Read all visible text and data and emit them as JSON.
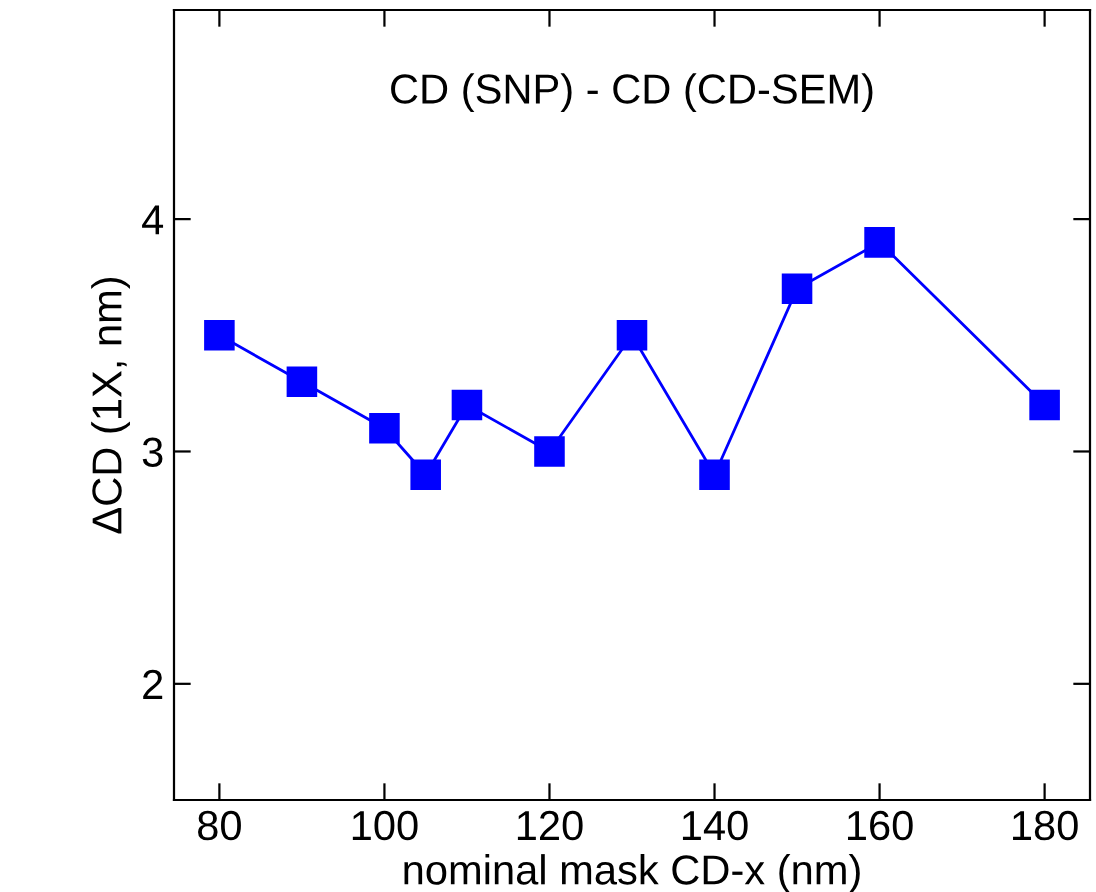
{
  "chart_data": {
    "type": "line",
    "xlabel": "nominal mask CD-x (nm)",
    "ylabel": "ΔCD (1X, nm)",
    "annotations": [
      "CD (SNP) - CD (CD-SEM)"
    ],
    "x": [
      80,
      90,
      100,
      105,
      110,
      120,
      130,
      140,
      150,
      160,
      180
    ],
    "series": [
      {
        "color": "#0000ff",
        "values": [
          3.5,
          3.3,
          3.1,
          2.9,
          3.2,
          3.0,
          3.5,
          2.9,
          3.7,
          3.9,
          3.2
        ]
      }
    ],
    "marker": "square",
    "line_style": "solid",
    "xlim": [
      74.5,
      185.5
    ],
    "xticks": [
      80,
      100,
      120,
      140,
      160,
      180
    ],
    "ylim": [
      1.5,
      4.9
    ],
    "yticks": [
      2,
      3,
      4
    ],
    "grid": false,
    "legend": false
  }
}
